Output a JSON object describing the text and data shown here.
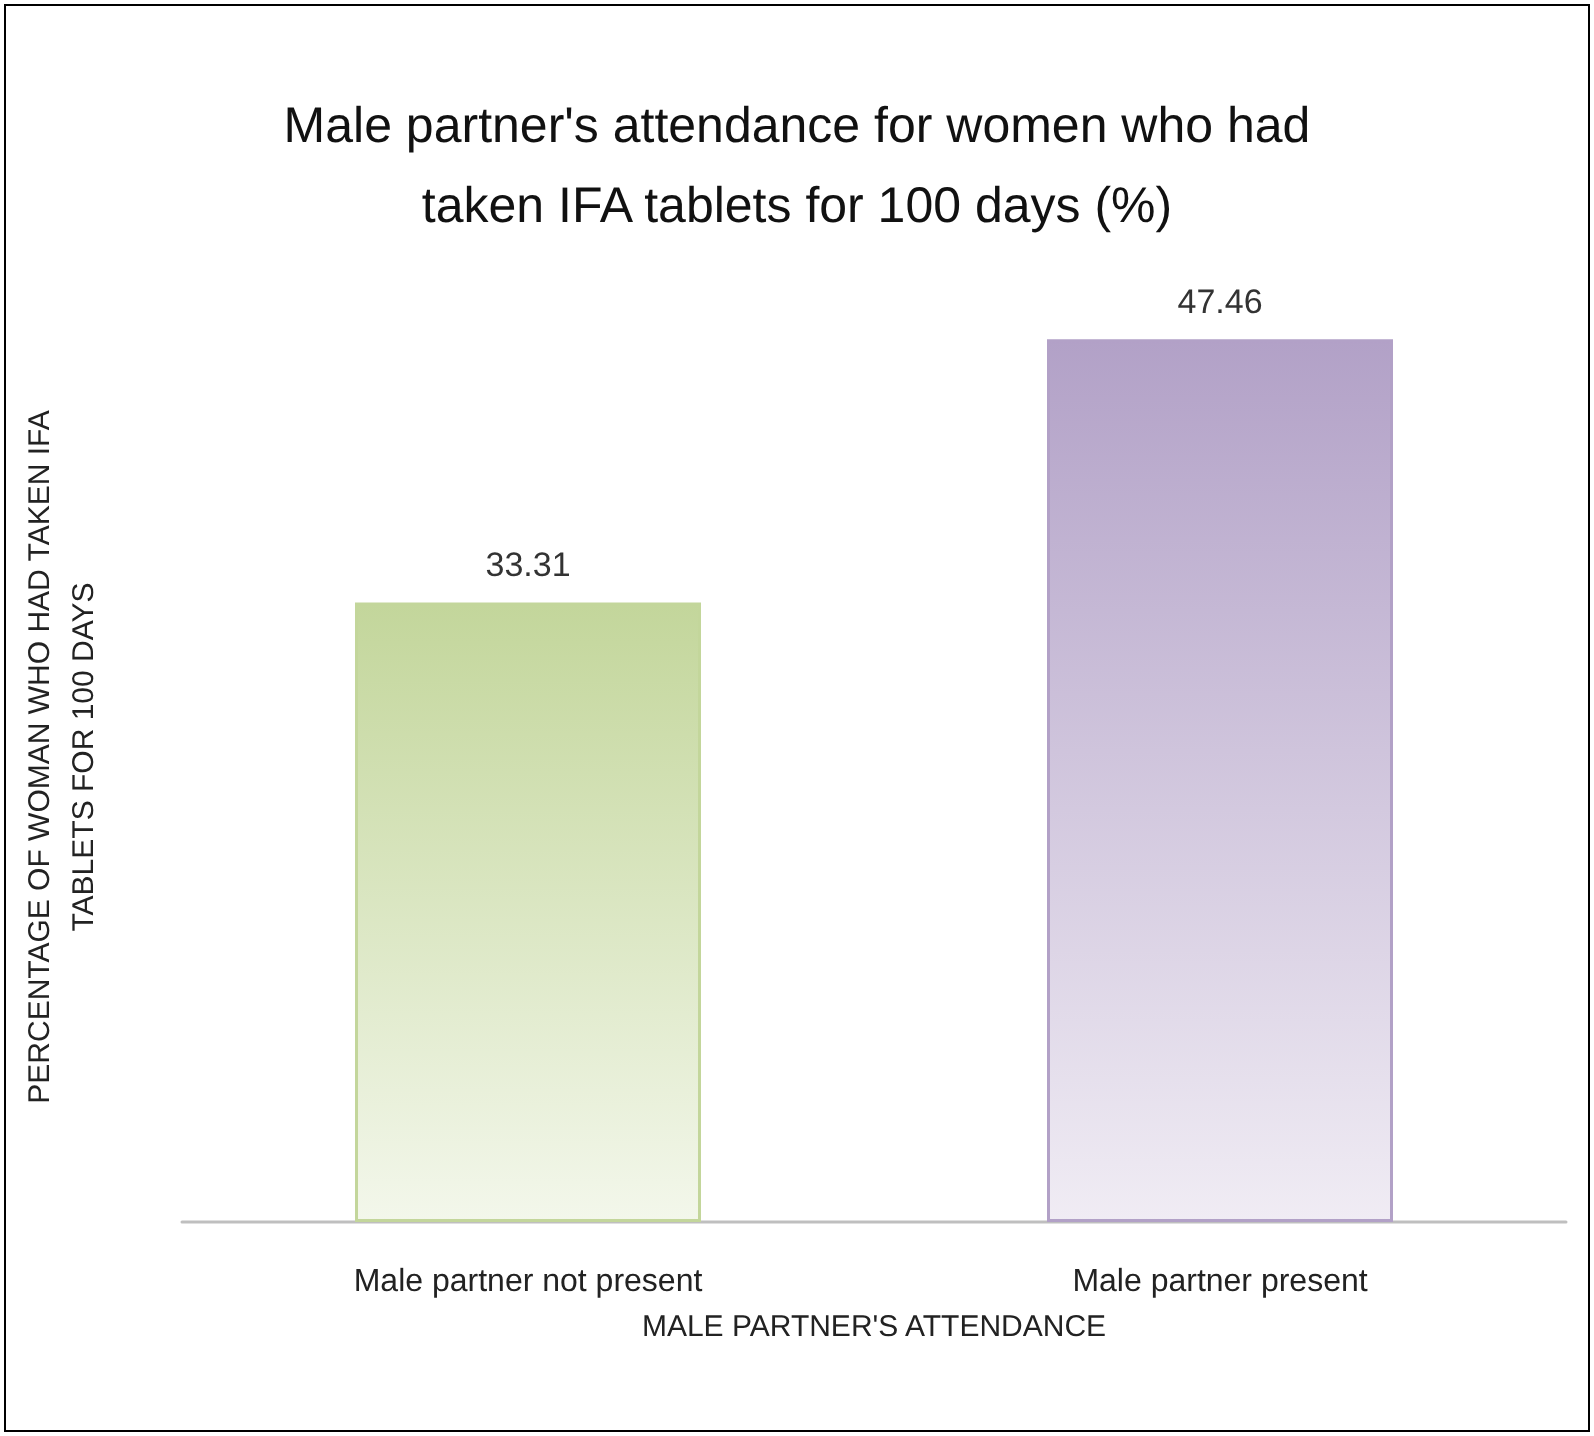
{
  "chart_data": {
    "type": "bar",
    "title": "Male partner's attendance for women who had\ntaken IFA tablets for 100 days (%)",
    "xlabel": "MALE PARTNER'S ATTENDANCE",
    "ylabel": "PERCENTAGE OF WOMAN WHO HAD TAKEN IFA\nTABLETS FOR 100 DAYS",
    "categories": [
      "Male partner not present",
      "Male partner present"
    ],
    "values": [
      33.31,
      47.46
    ],
    "colors": [
      "#c3d69b",
      "#b2a1c7"
    ],
    "data_labels": true,
    "grid": false,
    "tick_labels": "x"
  }
}
